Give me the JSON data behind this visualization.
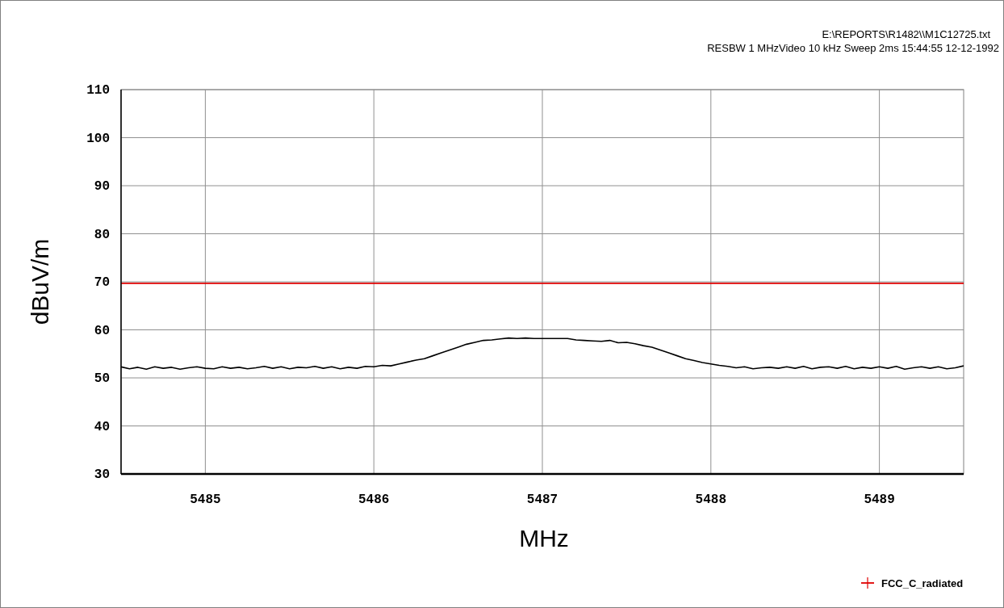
{
  "chart_data": {
    "type": "line",
    "title": "E:\\REPORTS\\R1482\\\\M1C12725.txt",
    "subtitle": "RESBW 1 MHzVideo 10 kHz Sweep 2ms 15:44:55  12-12-1992",
    "xlabel": "MHz",
    "ylabel": "dBuV/m",
    "xlim": [
      5484.5,
      5489.5
    ],
    "xticks": [
      5485,
      5486,
      5487,
      5488,
      5489
    ],
    "ylim": [
      30,
      110
    ],
    "yticks": [
      30,
      40,
      50,
      60,
      70,
      80,
      90,
      100,
      110
    ],
    "grid": true,
    "legend": "bottom right",
    "marker": "none",
    "line_style": "solid",
    "series": [
      {
        "color": "#000000",
        "x": [
          5484.5,
          5484.55,
          5484.6,
          5484.65,
          5484.7,
          5484.75,
          5484.8,
          5484.85,
          5484.9,
          5484.95,
          5485,
          5485.05,
          5485.1,
          5485.15,
          5485.2,
          5485.25,
          5485.3,
          5485.35,
          5485.4,
          5485.45,
          5485.5,
          5485.55,
          5485.6,
          5485.65,
          5485.7,
          5485.75,
          5485.8,
          5485.85,
          5485.9,
          5485.95,
          5486,
          5486.05,
          5486.1,
          5486.15,
          5486.2,
          5486.25,
          5486.3,
          5486.35,
          5486.4,
          5486.45,
          5486.5,
          5486.55,
          5486.6,
          5486.65,
          5486.7,
          5486.75,
          5486.8,
          5486.85,
          5486.9,
          5486.95,
          5487,
          5487.05,
          5487.1,
          5487.15,
          5487.2,
          5487.25,
          5487.3,
          5487.35,
          5487.4,
          5487.45,
          5487.5,
          5487.55,
          5487.6,
          5487.65,
          5487.7,
          5487.75,
          5487.8,
          5487.85,
          5487.9,
          5487.95,
          5488,
          5488.05,
          5488.1,
          5488.15,
          5488.2,
          5488.25,
          5488.3,
          5488.35,
          5488.4,
          5488.45,
          5488.5,
          5488.55,
          5488.6,
          5488.65,
          5488.7,
          5488.75,
          5488.8,
          5488.85,
          5488.9,
          5488.95,
          5489,
          5489.05,
          5489.1,
          5489.15,
          5489.2,
          5489.25,
          5489.3,
          5489.35,
          5489.4,
          5489.45,
          5489.5
        ],
        "values": [
          52.3,
          51.9,
          52.2,
          51.8,
          52.3,
          52.0,
          52.2,
          51.8,
          52.1,
          52.3,
          52.0,
          51.9,
          52.3,
          52.0,
          52.2,
          51.9,
          52.1,
          52.4,
          52.0,
          52.3,
          51.9,
          52.2,
          52.1,
          52.4,
          52.0,
          52.3,
          51.9,
          52.2,
          52.0,
          52.4,
          52.3,
          52.6,
          52.5,
          52.9,
          53.3,
          53.7,
          54.0,
          54.6,
          55.2,
          55.8,
          56.4,
          57.0,
          57.4,
          57.8,
          57.9,
          58.1,
          58.3,
          58.2,
          58.3,
          58.2,
          58.2,
          58.2,
          58.2,
          58.2,
          57.9,
          57.8,
          57.7,
          57.6,
          57.8,
          57.3,
          57.4,
          57.1,
          56.7,
          56.4,
          55.8,
          55.2,
          54.6,
          54.0,
          53.6,
          53.2,
          52.9,
          52.6,
          52.4,
          52.1,
          52.3,
          51.9,
          52.1,
          52.2,
          52.0,
          52.3,
          52.0,
          52.4,
          51.9,
          52.2,
          52.3,
          52.0,
          52.4,
          51.9,
          52.2,
          52.0,
          52.3,
          52.0,
          52.4,
          51.8,
          52.1,
          52.3,
          52.0,
          52.3,
          51.9,
          52.1,
          52.5
        ]
      },
      {
        "name": "FCC_C_radiated",
        "color": "#e00000",
        "x": [
          5484.5,
          5489.5
        ],
        "values": [
          69.7,
          69.7
        ]
      }
    ]
  }
}
